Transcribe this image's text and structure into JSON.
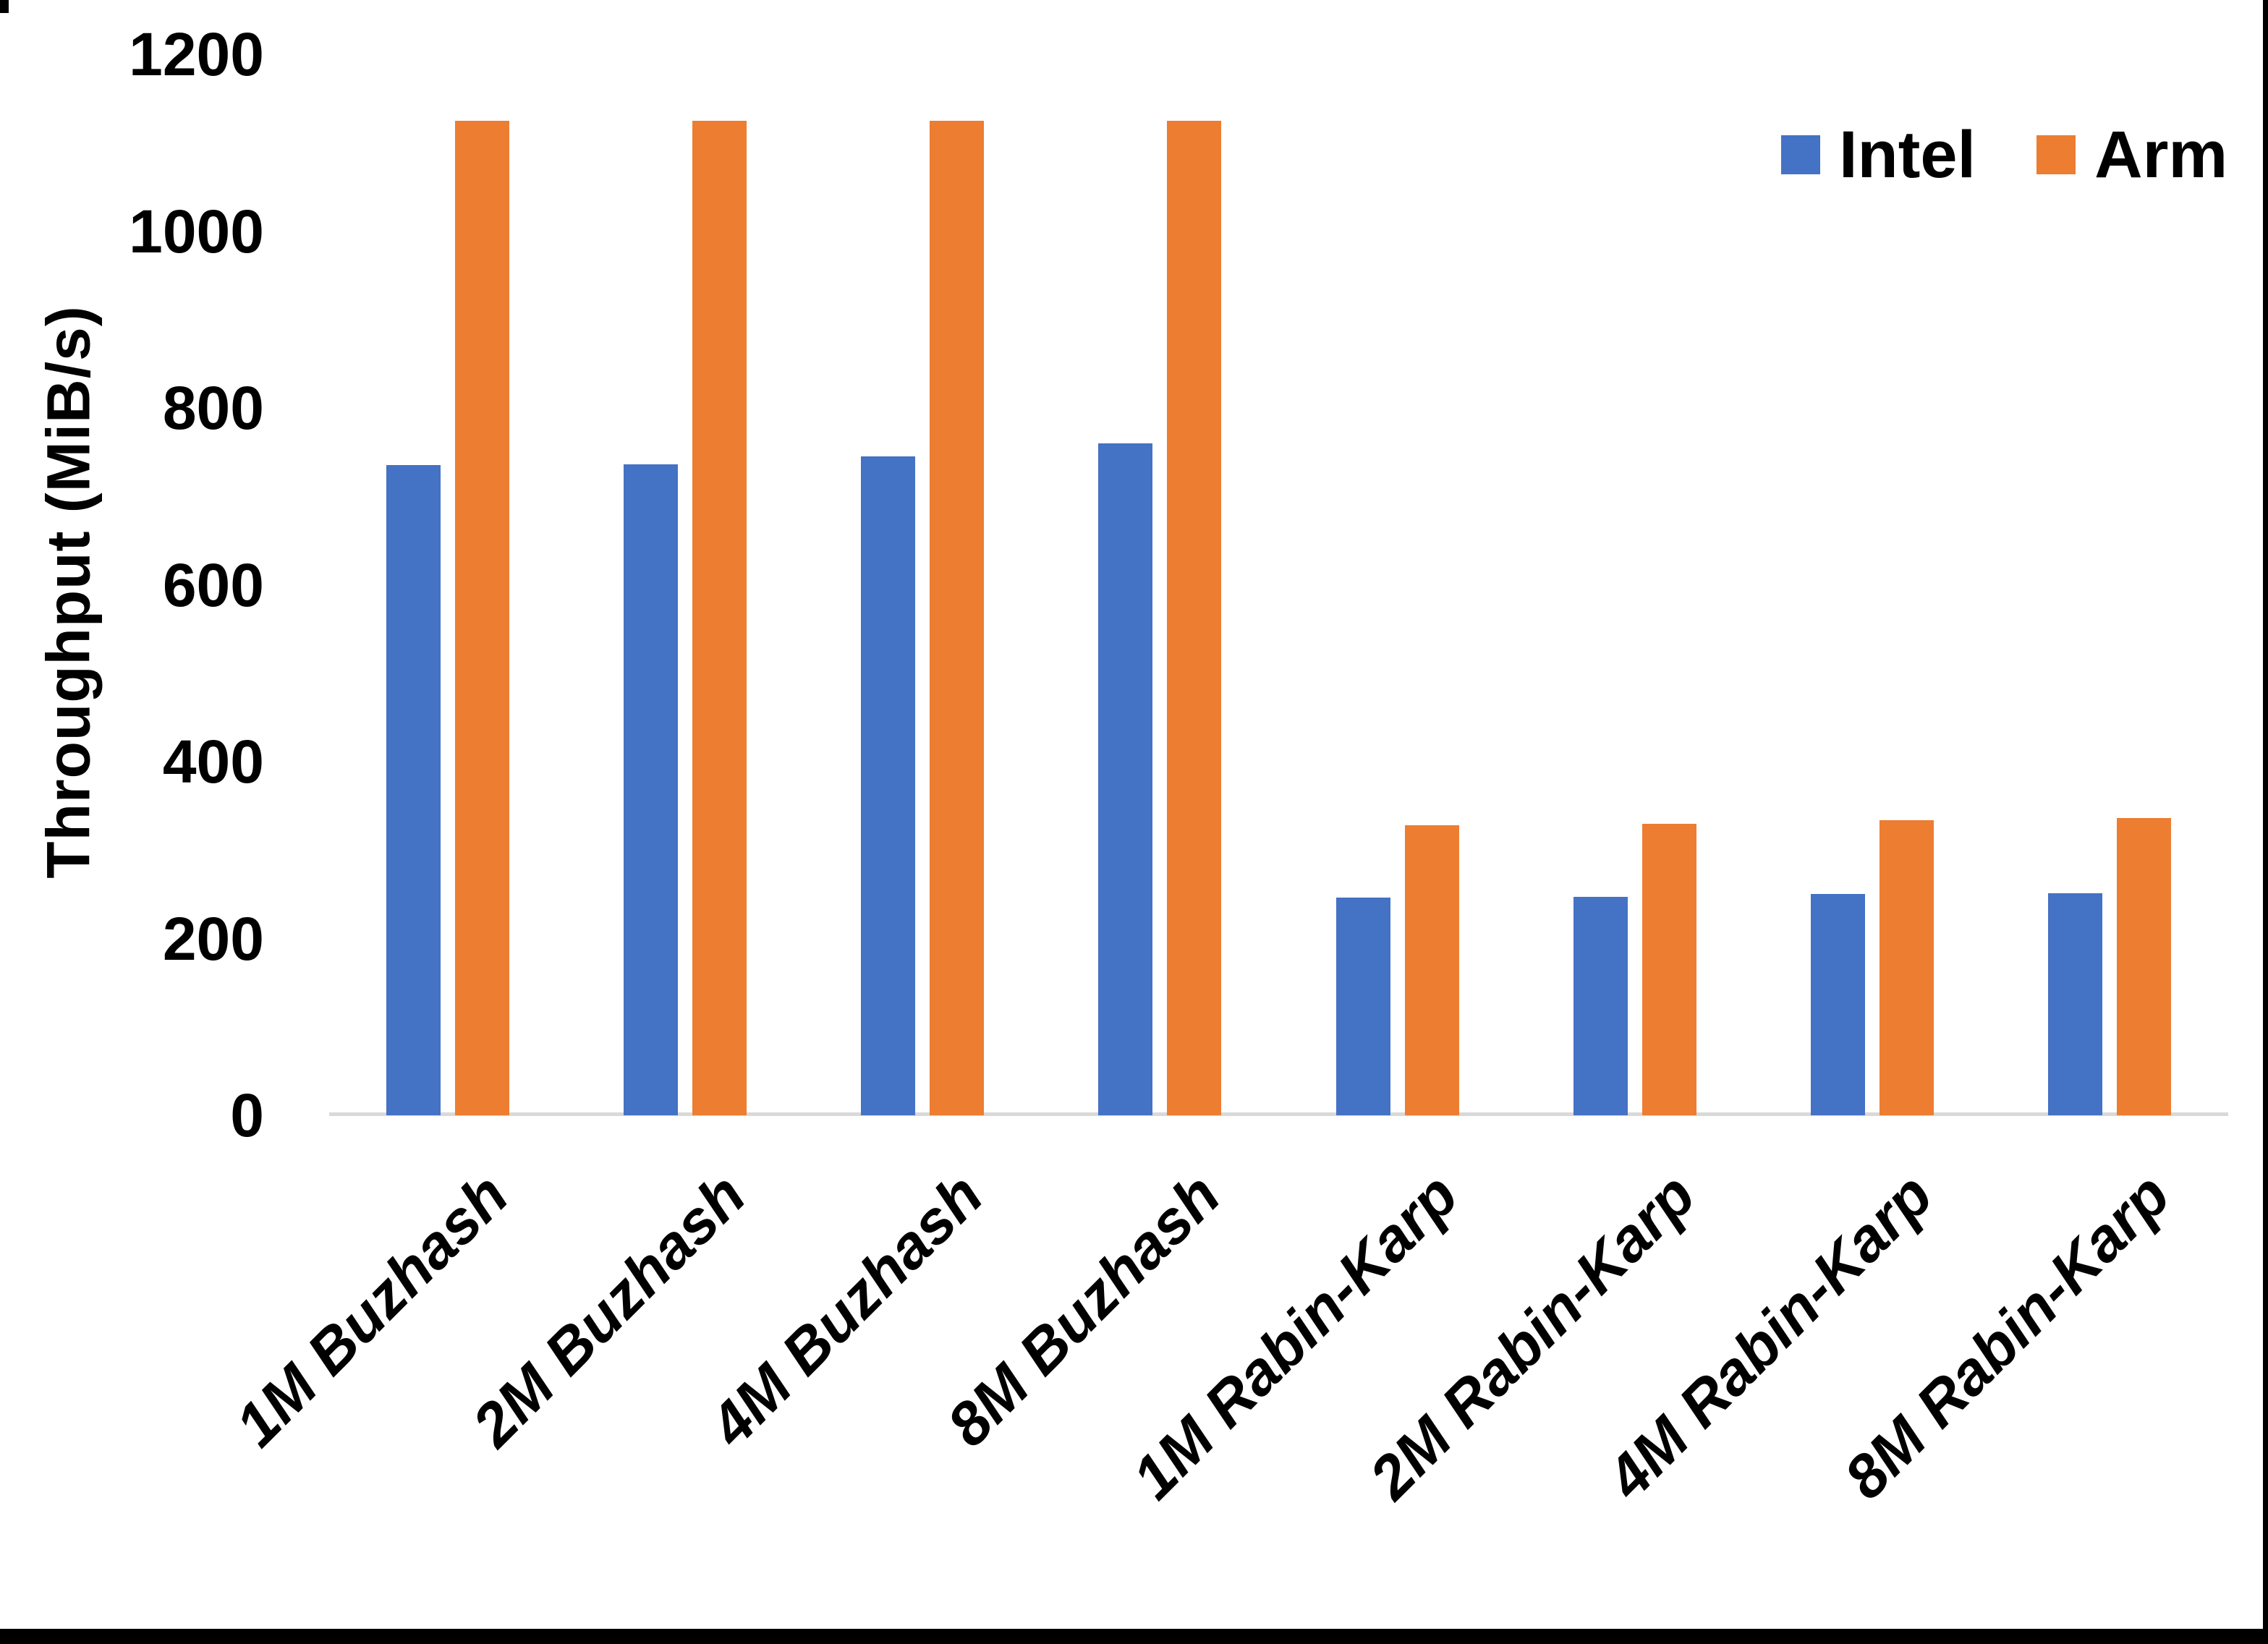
{
  "chart_data": {
    "type": "bar",
    "title": "",
    "categories": [
      "1M Buzhash",
      "2M Buzhash",
      "4M Buzhash",
      "8M Buzhash",
      "1M Rabin-Karp",
      "2M Rabin-Karp",
      "4M Rabin-Karp",
      "8M Rabin-Karp"
    ],
    "series": [
      {
        "name": "Intel",
        "color": "#4472C4",
        "values": [
          735,
          736,
          745,
          760,
          246,
          247,
          250,
          251
        ]
      },
      {
        "name": "Arm",
        "color": "#ED7D31",
        "values": [
          1125,
          1125,
          1125,
          1125,
          328,
          330,
          334,
          336
        ]
      }
    ],
    "xlabel": "",
    "ylabel": "Throughput (MiB/s)",
    "ylim": [
      0,
      1200
    ],
    "yticks": [
      0,
      200,
      400,
      600,
      800,
      1000,
      1200
    ],
    "grid": false,
    "legend_position": "top-right"
  },
  "colors": {
    "axis_line": "#D9D9D9",
    "text": "#000000",
    "background": "#FFFFFF",
    "screen_border": "#000000"
  }
}
